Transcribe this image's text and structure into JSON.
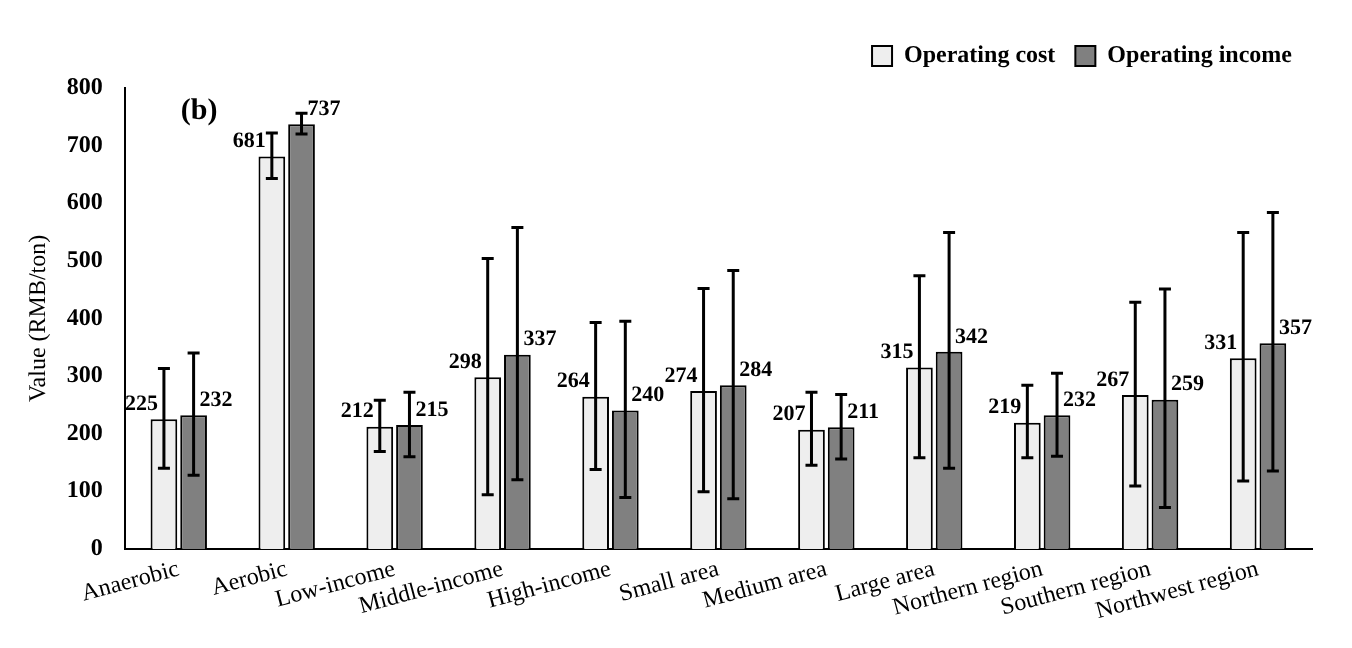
{
  "chart_data": {
    "type": "bar",
    "title": "(b)",
    "ylabel": "Value (RMB/ton)",
    "categories": [
      "Anaerobic",
      "Aerobic",
      "Low-income",
      "Middle-income",
      "High-income",
      "Small area",
      "Medium area",
      "Large area",
      "Northern region",
      "Southern region",
      "Northwest region"
    ],
    "series": [
      {
        "name": "Operating cost",
        "color": "#eeeeee",
        "values": [
          225,
          681,
          212,
          298,
          264,
          274,
          207,
          315,
          219,
          267,
          331
        ],
        "errors": [
          [
            140,
            313
          ],
          [
            643,
            722
          ],
          [
            169,
            258
          ],
          [
            94,
            504
          ],
          [
            138,
            393
          ],
          [
            99,
            452
          ],
          [
            145,
            272
          ],
          [
            158,
            474
          ],
          [
            158,
            284
          ],
          [
            109,
            428
          ],
          [
            118,
            549
          ]
        ]
      },
      {
        "name": "Operating income",
        "color": "#808080",
        "values": [
          232,
          737,
          215,
          337,
          240,
          284,
          211,
          342,
          232,
          259,
          357
        ],
        "errors": [
          [
            128,
            340
          ],
          [
            720,
            756
          ],
          [
            160,
            272
          ],
          [
            120,
            558
          ],
          [
            89,
            395
          ],
          [
            87,
            483
          ],
          [
            156,
            268
          ],
          [
            140,
            549
          ],
          [
            161,
            305
          ],
          [
            72,
            451
          ],
          [
            135,
            584
          ]
        ]
      }
    ],
    "ylim": [
      0,
      800
    ],
    "yticks": [
      0,
      100,
      200,
      300,
      400,
      500,
      600,
      700,
      800
    ],
    "grid": false,
    "legend": "top right",
    "data_labels": true
  }
}
